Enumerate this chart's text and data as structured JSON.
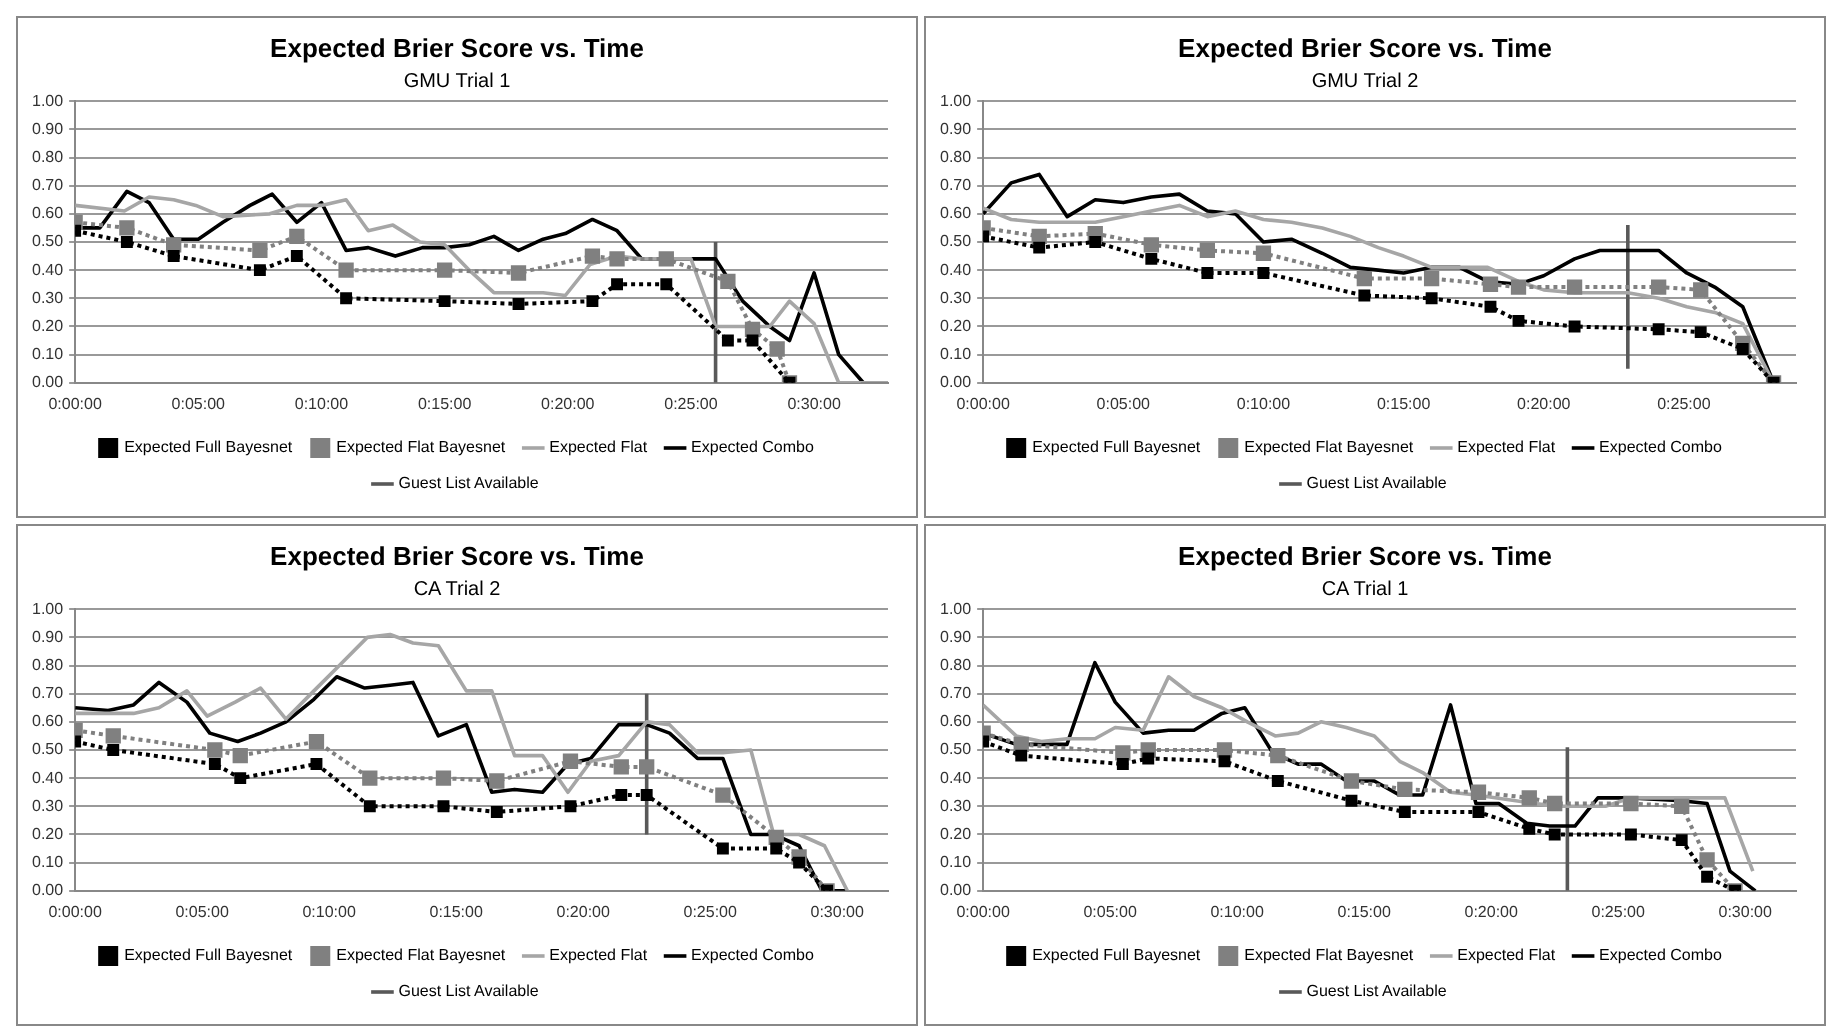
{
  "chart_data": [
    {
      "type": "line",
      "title": "Expected Brier Score vs. Time",
      "subtitle": "GMU Trial 1",
      "xlim": [
        0,
        33
      ],
      "xticks": [
        {
          "value": 0,
          "label": "0:00:00"
        },
        {
          "value": 5,
          "label": "0:05:00"
        },
        {
          "value": 10,
          "label": "0:10:00"
        },
        {
          "value": 15,
          "label": "0:15:00"
        },
        {
          "value": 20,
          "label": "0:20:00"
        },
        {
          "value": 25,
          "label": "0:25:00"
        },
        {
          "value": 30,
          "label": "0:30:00"
        }
      ],
      "ylim": [
        0,
        1
      ],
      "yticks": [
        {
          "value": 0,
          "label": "0.00"
        },
        {
          "value": 0.1,
          "label": "0.10"
        },
        {
          "value": 0.2,
          "label": "0.20"
        },
        {
          "value": 0.3,
          "label": "0.30"
        },
        {
          "value": 0.4,
          "label": "0.40"
        },
        {
          "value": 0.5,
          "label": "0.50"
        },
        {
          "value": 0.6,
          "label": "0.60"
        },
        {
          "value": 0.7,
          "label": "0.70"
        },
        {
          "value": 0.8,
          "label": "0.80"
        },
        {
          "value": 0.9,
          "label": "0.90"
        },
        {
          "value": 1,
          "label": "1.00"
        }
      ],
      "grid": "y",
      "legend": "bottom",
      "series": [
        {
          "name": "Expected Full Bayesnet",
          "color": "#000000",
          "marker": "square",
          "line_style": "dotted",
          "x": [
            0,
            2.1,
            4,
            7.5,
            9,
            11,
            15,
            18,
            21,
            22,
            24,
            26.5,
            27.5,
            29
          ],
          "values": [
            0.54,
            0.5,
            0.45,
            0.4,
            0.45,
            0.3,
            0.29,
            0.28,
            0.29,
            0.35,
            0.35,
            0.15,
            0.15,
            0
          ]
        },
        {
          "name": "Expected Flat Bayesnet",
          "color": "#808080",
          "marker": "square",
          "line_style": "dotted",
          "x": [
            0,
            2.1,
            4,
            7.5,
            9,
            11,
            15,
            18,
            21,
            22,
            24,
            26.5,
            27.5,
            28.5,
            29
          ],
          "values": [
            0.57,
            0.55,
            0.49,
            0.47,
            0.52,
            0.4,
            0.4,
            0.39,
            0.45,
            0.44,
            0.44,
            0.36,
            0.19,
            0.12,
            0
          ]
        },
        {
          "name": "Expected Flat",
          "color": "#a6a6a6",
          "marker": "none",
          "line_style": "solid",
          "x": [
            0,
            2,
            3,
            4,
            4.9,
            6,
            7.9,
            9,
            10,
            11,
            11.9,
            12.9,
            14,
            15,
            16,
            17,
            19,
            19.9,
            20.9,
            22,
            23,
            25,
            26,
            27.2,
            28.2,
            29,
            30,
            31,
            33
          ],
          "values": [
            0.63,
            0.61,
            0.66,
            0.65,
            0.63,
            0.59,
            0.6,
            0.63,
            0.63,
            0.65,
            0.54,
            0.56,
            0.5,
            0.49,
            0.4,
            0.32,
            0.32,
            0.31,
            0.42,
            0.45,
            0.44,
            0.44,
            0.2,
            0.2,
            0.2,
            0.29,
            0.21,
            0,
            0
          ]
        },
        {
          "name": "Expected Combo",
          "color": "#000000",
          "marker": "none",
          "line_style": "solid",
          "x": [
            0,
            1,
            2.1,
            3,
            4,
            5,
            6,
            7.1,
            8,
            9,
            10,
            11,
            11.9,
            13,
            14.1,
            15,
            16,
            17,
            18,
            19,
            19.9,
            21,
            22,
            23,
            26,
            27.1,
            28.2,
            29,
            30,
            31,
            32,
            33
          ],
          "values": [
            0.55,
            0.55,
            0.68,
            0.64,
            0.51,
            0.51,
            0.57,
            0.63,
            0.67,
            0.57,
            0.64,
            0.47,
            0.48,
            0.45,
            0.48,
            0.48,
            0.49,
            0.52,
            0.47,
            0.51,
            0.53,
            0.58,
            0.54,
            0.44,
            0.44,
            0.29,
            0.2,
            0.15,
            0.39,
            0.1,
            0,
            0
          ]
        },
        {
          "name": "Guest List Available",
          "color": "#595959",
          "marker": "none",
          "line_style": "solid",
          "x": [
            26,
            26
          ],
          "values": [
            0,
            0.5
          ]
        }
      ]
    },
    {
      "type": "line",
      "title": "Expected Brier Score vs. Time",
      "subtitle": "GMU Trial 2",
      "xlim": [
        0,
        29
      ],
      "xticks": [
        {
          "value": 0,
          "label": "0:00:00"
        },
        {
          "value": 5,
          "label": "0:05:00"
        },
        {
          "value": 10,
          "label": "0:10:00"
        },
        {
          "value": 15,
          "label": "0:15:00"
        },
        {
          "value": 20,
          "label": "0:20:00"
        },
        {
          "value": 25,
          "label": "0:25:00"
        }
      ],
      "ylim": [
        0,
        1
      ],
      "yticks": [
        {
          "value": 0,
          "label": "0.00"
        },
        {
          "value": 0.1,
          "label": "0.10"
        },
        {
          "value": 0.2,
          "label": "0.20"
        },
        {
          "value": 0.3,
          "label": "0.30"
        },
        {
          "value": 0.4,
          "label": "0.40"
        },
        {
          "value": 0.5,
          "label": "0.50"
        },
        {
          "value": 0.6,
          "label": "0.60"
        },
        {
          "value": 0.7,
          "label": "0.70"
        },
        {
          "value": 0.8,
          "label": "0.80"
        },
        {
          "value": 0.9,
          "label": "0.90"
        },
        {
          "value": 1,
          "label": "1.00"
        }
      ],
      "grid": "y",
      "legend": "bottom",
      "series": [
        {
          "name": "Expected Full Bayesnet",
          "color": "#000000",
          "marker": "square",
          "line_style": "dotted",
          "x": [
            0,
            2,
            4,
            6,
            8,
            10,
            13.6,
            16,
            18.1,
            19.1,
            21.1,
            24.1,
            25.6,
            27.1,
            28.2
          ],
          "values": [
            0.52,
            0.48,
            0.5,
            0.44,
            0.39,
            0.39,
            0.31,
            0.3,
            0.27,
            0.22,
            0.2,
            0.19,
            0.18,
            0.12,
            0
          ]
        },
        {
          "name": "Expected Flat Bayesnet",
          "color": "#808080",
          "marker": "square",
          "line_style": "dotted",
          "x": [
            0,
            2,
            4,
            6,
            8,
            10,
            13.6,
            16,
            18.1,
            19.1,
            21.1,
            24.1,
            25.6,
            27.1,
            28.2
          ],
          "values": [
            0.55,
            0.52,
            0.53,
            0.49,
            0.47,
            0.46,
            0.37,
            0.37,
            0.35,
            0.34,
            0.34,
            0.34,
            0.33,
            0.14,
            0
          ]
        },
        {
          "name": "Expected Flat",
          "color": "#a6a6a6",
          "marker": "none",
          "line_style": "solid",
          "x": [
            0,
            1,
            2,
            4,
            5,
            6,
            7,
            8,
            9,
            10,
            11,
            12.1,
            13.1,
            14.1,
            15,
            16,
            18,
            19.1,
            20,
            21.1,
            23,
            24.1,
            25.1,
            26.1,
            27.1,
            28.2
          ],
          "values": [
            0.62,
            0.58,
            0.57,
            0.57,
            0.59,
            0.61,
            0.63,
            0.59,
            0.61,
            0.58,
            0.57,
            0.55,
            0.52,
            0.48,
            0.45,
            0.41,
            0.41,
            0.36,
            0.33,
            0.32,
            0.32,
            0.3,
            0.27,
            0.25,
            0.21,
            0
          ]
        },
        {
          "name": "Expected Combo",
          "color": "#000000",
          "marker": "none",
          "line_style": "solid",
          "x": [
            0,
            1,
            2,
            3,
            4,
            5,
            6,
            7,
            8,
            9,
            10,
            11,
            12.1,
            13.1,
            14.1,
            15,
            16,
            17,
            18,
            19.1,
            20,
            21.1,
            22,
            24.1,
            25.1,
            26.1,
            27.1,
            28.2
          ],
          "values": [
            0.6,
            0.71,
            0.74,
            0.59,
            0.65,
            0.64,
            0.66,
            0.67,
            0.61,
            0.6,
            0.5,
            0.51,
            0.46,
            0.41,
            0.4,
            0.39,
            0.41,
            0.41,
            0.36,
            0.35,
            0.38,
            0.44,
            0.47,
            0.47,
            0.39,
            0.34,
            0.27,
            0
          ]
        },
        {
          "name": "Guest List Available",
          "color": "#595959",
          "marker": "none",
          "line_style": "solid",
          "x": [
            23,
            23
          ],
          "values": [
            0.05,
            0.56
          ]
        }
      ]
    },
    {
      "type": "line",
      "title": "Expected Brier Score vs. Time",
      "subtitle": "CA Trial 2",
      "xlim": [
        0,
        32
      ],
      "xticks": [
        {
          "value": 0,
          "label": "0:00:00"
        },
        {
          "value": 5,
          "label": "0:05:00"
        },
        {
          "value": 10,
          "label": "0:10:00"
        },
        {
          "value": 15,
          "label": "0:15:00"
        },
        {
          "value": 20,
          "label": "0:20:00"
        },
        {
          "value": 25,
          "label": "0:25:00"
        },
        {
          "value": 30,
          "label": "0:30:00"
        }
      ],
      "ylim": [
        0,
        1
      ],
      "yticks": [
        {
          "value": 0,
          "label": "0.00"
        },
        {
          "value": 0.1,
          "label": "0.10"
        },
        {
          "value": 0.2,
          "label": "0.20"
        },
        {
          "value": 0.3,
          "label": "0.30"
        },
        {
          "value": 0.4,
          "label": "0.40"
        },
        {
          "value": 0.5,
          "label": "0.50"
        },
        {
          "value": 0.6,
          "label": "0.60"
        },
        {
          "value": 0.7,
          "label": "0.70"
        },
        {
          "value": 0.8,
          "label": "0.80"
        },
        {
          "value": 0.9,
          "label": "0.90"
        },
        {
          "value": 1,
          "label": "1.00"
        }
      ],
      "grid": "y",
      "legend": "bottom",
      "series": [
        {
          "name": "Expected Full Bayesnet",
          "color": "#000000",
          "marker": "square",
          "line_style": "dotted",
          "x": [
            0,
            1.5,
            5.5,
            6.5,
            9.5,
            11.6,
            14.5,
            16.6,
            19.5,
            21.5,
            22.5,
            25.5,
            27.6,
            28.5,
            29.6
          ],
          "values": [
            0.53,
            0.5,
            0.45,
            0.4,
            0.45,
            0.3,
            0.3,
            0.28,
            0.3,
            0.34,
            0.34,
            0.15,
            0.15,
            0.1,
            0
          ]
        },
        {
          "name": "Expected Flat Bayesnet",
          "color": "#808080",
          "marker": "square",
          "line_style": "dotted",
          "x": [
            0,
            1.5,
            5.5,
            6.5,
            9.5,
            11.6,
            14.5,
            16.6,
            19.5,
            21.5,
            22.5,
            25.5,
            27.6,
            28.5,
            29.6
          ],
          "values": [
            0.57,
            0.55,
            0.5,
            0.48,
            0.53,
            0.4,
            0.4,
            0.39,
            0.46,
            0.44,
            0.44,
            0.34,
            0.19,
            0.12,
            0
          ]
        },
        {
          "name": "Expected Flat",
          "color": "#a6a6a6",
          "marker": "none",
          "line_style": "solid",
          "x": [
            0,
            1.3,
            2.3,
            3.3,
            4.4,
            5.2,
            6.3,
            7.3,
            8.3,
            9.4,
            10.4,
            11.5,
            12.4,
            13.3,
            14.3,
            15.4,
            16.4,
            17.3,
            18.4,
            19.4,
            20.3,
            21.4,
            22.5,
            23.4,
            24.5,
            25.5,
            26.6,
            27.5,
            28.5,
            29.5,
            30.4
          ],
          "values": [
            0.63,
            0.63,
            0.63,
            0.65,
            0.71,
            0.62,
            0.67,
            0.72,
            0.61,
            0.71,
            0.8,
            0.9,
            0.91,
            0.88,
            0.87,
            0.71,
            0.71,
            0.48,
            0.48,
            0.35,
            0.46,
            0.48,
            0.6,
            0.59,
            0.49,
            0.49,
            0.5,
            0.2,
            0.2,
            0.16,
            0
          ]
        },
        {
          "name": "Expected Combo",
          "color": "#000000",
          "marker": "none",
          "line_style": "solid",
          "x": [
            0,
            1.3,
            2.3,
            3.3,
            4.4,
            5.3,
            6.4,
            7.3,
            8.3,
            9.4,
            10.3,
            11.4,
            12.4,
            13.3,
            14.3,
            15.4,
            16.4,
            17.3,
            18.4,
            19.4,
            20.3,
            21.4,
            22.5,
            23.4,
            24.5,
            25.5,
            26.6,
            27.5,
            28.5,
            29.4,
            30.4
          ],
          "values": [
            0.65,
            0.64,
            0.66,
            0.74,
            0.67,
            0.56,
            0.53,
            0.56,
            0.6,
            0.68,
            0.76,
            0.72,
            0.73,
            0.74,
            0.55,
            0.59,
            0.35,
            0.36,
            0.35,
            0.45,
            0.47,
            0.59,
            0.59,
            0.56,
            0.47,
            0.47,
            0.2,
            0.2,
            0.16,
            0,
            0
          ]
        },
        {
          "name": "Guest List Available",
          "color": "#595959",
          "marker": "none",
          "line_style": "solid",
          "x": [
            22.5,
            22.5
          ],
          "values": [
            0.2,
            0.7
          ]
        }
      ]
    },
    {
      "type": "line",
      "title": "Expected Brier Score vs. Time",
      "subtitle": "CA Trial 1",
      "xlim": [
        0,
        32
      ],
      "xticks": [
        {
          "value": 0,
          "label": "0:00:00"
        },
        {
          "value": 5,
          "label": "0:05:00"
        },
        {
          "value": 10,
          "label": "0:10:00"
        },
        {
          "value": 15,
          "label": "0:15:00"
        },
        {
          "value": 20,
          "label": "0:20:00"
        },
        {
          "value": 25,
          "label": "0:25:00"
        },
        {
          "value": 30,
          "label": "0:30:00"
        }
      ],
      "ylim": [
        0,
        1
      ],
      "yticks": [
        {
          "value": 0,
          "label": "0.00"
        },
        {
          "value": 0.1,
          "label": "0.10"
        },
        {
          "value": 0.2,
          "label": "0.20"
        },
        {
          "value": 0.3,
          "label": "0.30"
        },
        {
          "value": 0.4,
          "label": "0.40"
        },
        {
          "value": 0.5,
          "label": "0.50"
        },
        {
          "value": 0.6,
          "label": "0.60"
        },
        {
          "value": 0.7,
          "label": "0.70"
        },
        {
          "value": 0.8,
          "label": "0.80"
        },
        {
          "value": 0.9,
          "label": "0.90"
        },
        {
          "value": 1,
          "label": "1.00"
        }
      ],
      "grid": "y",
      "legend": "bottom",
      "series": [
        {
          "name": "Expected Full Bayesnet",
          "color": "#000000",
          "marker": "square",
          "line_style": "dotted",
          "x": [
            0,
            1.5,
            5.5,
            6.5,
            9.5,
            11.6,
            14.5,
            16.6,
            19.5,
            21.5,
            22.5,
            25.5,
            27.5,
            28.5,
            29.6
          ],
          "values": [
            0.53,
            0.48,
            0.45,
            0.47,
            0.46,
            0.39,
            0.32,
            0.28,
            0.28,
            0.22,
            0.2,
            0.2,
            0.18,
            0.05,
            0
          ]
        },
        {
          "name": "Expected Flat Bayesnet",
          "color": "#808080",
          "marker": "square",
          "line_style": "dotted",
          "x": [
            0,
            1.5,
            5.5,
            6.5,
            9.5,
            11.6,
            14.5,
            16.6,
            19.5,
            21.5,
            22.5,
            25.5,
            27.5,
            28.5,
            29.6
          ],
          "values": [
            0.56,
            0.52,
            0.49,
            0.5,
            0.5,
            0.48,
            0.39,
            0.36,
            0.35,
            0.33,
            0.31,
            0.31,
            0.3,
            0.11,
            0
          ]
        },
        {
          "name": "Expected Flat",
          "color": "#a6a6a6",
          "marker": "none",
          "line_style": "solid",
          "x": [
            0,
            1.3,
            2.3,
            3.3,
            4.4,
            5.2,
            6.3,
            7.3,
            8.3,
            9.4,
            10.4,
            11.5,
            12.4,
            13.3,
            14.3,
            15.4,
            16.4,
            17.3,
            18.4,
            19.4,
            22.5,
            24.5,
            25.5,
            29.2,
            30.3
          ],
          "values": [
            0.66,
            0.55,
            0.53,
            0.54,
            0.54,
            0.58,
            0.57,
            0.76,
            0.69,
            0.65,
            0.6,
            0.55,
            0.56,
            0.6,
            0.58,
            0.55,
            0.46,
            0.42,
            0.35,
            0.34,
            0.3,
            0.3,
            0.33,
            0.33,
            0.07
          ]
        },
        {
          "name": "Expected Combo",
          "color": "#000000",
          "marker": "none",
          "line_style": "solid",
          "x": [
            0,
            1.3,
            2.3,
            3.3,
            4.4,
            5.2,
            6.3,
            7.3,
            8.3,
            9.4,
            10.3,
            11.4,
            12.4,
            13.3,
            14.3,
            15.4,
            16.4,
            17.3,
            18.4,
            19.4,
            20.3,
            21.4,
            22.3,
            23.3,
            24.2,
            25.5,
            27.5,
            28.5,
            29.4,
            30.4
          ],
          "values": [
            0.56,
            0.52,
            0.52,
            0.52,
            0.81,
            0.67,
            0.56,
            0.57,
            0.57,
            0.63,
            0.65,
            0.49,
            0.45,
            0.45,
            0.39,
            0.39,
            0.34,
            0.34,
            0.66,
            0.31,
            0.31,
            0.24,
            0.23,
            0.23,
            0.33,
            0.33,
            0.32,
            0.31,
            0.07,
            0
          ]
        },
        {
          "name": "Guest List Available",
          "color": "#595959",
          "marker": "none",
          "line_style": "solid",
          "x": [
            23,
            23
          ],
          "values": [
            0,
            0.51
          ]
        }
      ]
    }
  ]
}
